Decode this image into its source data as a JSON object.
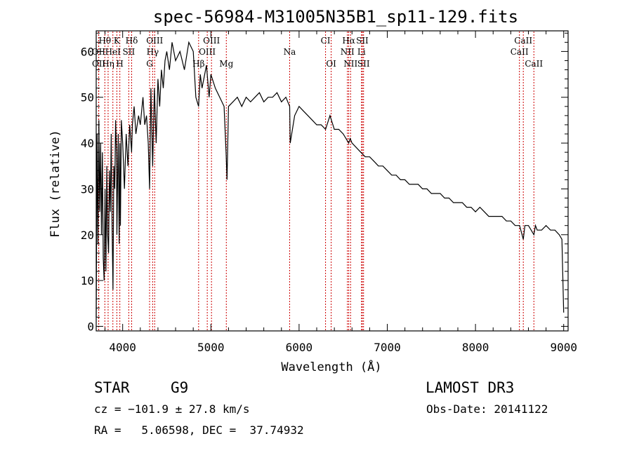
{
  "chart_data": {
    "type": "line",
    "title": "spec-56984-M31005N35B1_sp11-129.fits",
    "xlabel": "Wavelength (Å)",
    "ylabel": "Flux (relative)",
    "xlim": [
      3700,
      9050
    ],
    "ylim": [
      -1,
      64.5
    ],
    "xticks": [
      4000,
      5000,
      6000,
      7000,
      8000,
      9000
    ],
    "yticks": [
      0,
      10,
      20,
      30,
      40,
      50,
      60
    ],
    "series": [
      {
        "name": "spectrum",
        "x": [
          3700,
          3710,
          3720,
          3730,
          3740,
          3750,
          3760,
          3770,
          3780,
          3790,
          3800,
          3810,
          3820,
          3830,
          3840,
          3850,
          3860,
          3870,
          3880,
          3890,
          3900,
          3910,
          3920,
          3930,
          3935,
          3940,
          3950,
          3960,
          3968,
          3975,
          3985,
          4000,
          4020,
          4040,
          4060,
          4080,
          4101,
          4110,
          4130,
          4150,
          4180,
          4200,
          4230,
          4250,
          4270,
          4290,
          4305,
          4320,
          4340,
          4360,
          4380,
          4400,
          4420,
          4440,
          4460,
          4480,
          4500,
          4530,
          4560,
          4600,
          4650,
          4700,
          4750,
          4800,
          4830,
          4861,
          4880,
          4900,
          4950,
          4980,
          5000,
          5050,
          5100,
          5150,
          5172,
          5183,
          5200,
          5250,
          5300,
          5350,
          5400,
          5450,
          5500,
          5550,
          5600,
          5650,
          5700,
          5750,
          5800,
          5850,
          5893,
          5900,
          5950,
          6000,
          6050,
          6100,
          6150,
          6200,
          6250,
          6300,
          6350,
          6400,
          6450,
          6500,
          6563,
          6580,
          6600,
          6650,
          6700,
          6750,
          6800,
          6850,
          6900,
          6950,
          7000,
          7050,
          7100,
          7150,
          7200,
          7250,
          7300,
          7350,
          7400,
          7450,
          7500,
          7550,
          7600,
          7650,
          7700,
          7750,
          7800,
          7850,
          7900,
          7950,
          8000,
          8050,
          8100,
          8150,
          8200,
          8250,
          8300,
          8350,
          8400,
          8450,
          8500,
          8542,
          8560,
          8600,
          8662,
          8680,
          8700,
          8750,
          8800,
          8850,
          8900,
          8950,
          8980,
          9000
        ],
        "y": [
          2,
          42,
          18,
          45,
          25,
          40,
          20,
          38,
          15,
          10,
          30,
          12,
          35,
          20,
          16,
          34,
          25,
          42,
          22,
          8,
          35,
          30,
          45,
          38,
          20,
          28,
          42,
          18,
          40,
          22,
          45,
          40,
          30,
          42,
          35,
          44,
          38,
          44,
          48,
          42,
          46,
          44,
          50,
          44,
          46,
          40,
          30,
          52,
          35,
          52,
          40,
          54,
          48,
          56,
          52,
          58,
          60,
          56,
          62,
          58,
          60,
          56,
          62,
          60,
          50,
          48,
          55,
          52,
          57,
          50,
          55,
          52,
          50,
          48,
          38,
          32,
          48,
          49,
          50,
          48,
          50,
          49,
          50,
          51,
          49,
          50,
          50,
          51,
          49,
          50,
          48,
          40,
          46,
          48,
          47,
          46,
          45,
          44,
          44,
          43,
          46,
          43,
          43,
          42,
          40,
          41,
          40,
          39,
          38,
          37,
          37,
          36,
          35,
          35,
          34,
          33,
          33,
          32,
          32,
          31,
          31,
          31,
          30,
          30,
          29,
          29,
          29,
          28,
          28,
          27,
          27,
          27,
          26,
          26,
          25,
          26,
          25,
          24,
          24,
          24,
          24,
          23,
          23,
          22,
          22,
          19,
          22,
          22,
          20,
          22,
          21,
          21,
          22,
          21,
          21,
          20,
          19,
          3
        ]
      }
    ],
    "line_markers": [
      {
        "label": "Hθ",
        "x": 3798,
        "row": 1
      },
      {
        "label": "K",
        "x": 3934,
        "row": 1
      },
      {
        "label": "Hδ",
        "x": 4102,
        "row": 1
      },
      {
        "label": "OIII",
        "x": 4363,
        "row": 1
      },
      {
        "label": "OIII",
        "x": 5007,
        "row": 1
      },
      {
        "label": "CI",
        "x": 6300,
        "row": 1
      },
      {
        "label": "Hα",
        "x": 6563,
        "row": 1
      },
      {
        "label": "SII",
        "x": 6717,
        "row": 1
      },
      {
        "label": "CaII",
        "x": 8542,
        "row": 1
      },
      {
        "label": "OII",
        "x": 3727,
        "row": 2
      },
      {
        "label": "HeI",
        "x": 3889,
        "row": 2
      },
      {
        "label": "SII",
        "x": 4069,
        "row": 2
      },
      {
        "label": "Hγ",
        "x": 4340,
        "row": 2
      },
      {
        "label": "OIII",
        "x": 4959,
        "row": 2
      },
      {
        "label": "Na",
        "x": 5893,
        "row": 2
      },
      {
        "label": "NII",
        "x": 6548,
        "row": 2
      },
      {
        "label": "Li",
        "x": 6708,
        "row": 2
      },
      {
        "label": "CaII",
        "x": 8498,
        "row": 2
      },
      {
        "label": "OII",
        "x": 3729,
        "row": 3
      },
      {
        "label": "Hη",
        "x": 3835,
        "row": 3
      },
      {
        "label": "H",
        "x": 3968,
        "row": 3
      },
      {
        "label": "G",
        "x": 4305,
        "row": 3
      },
      {
        "label": "Hβ",
        "x": 4861,
        "row": 3
      },
      {
        "label": "Mg",
        "x": 5175,
        "row": 3
      },
      {
        "label": "OI",
        "x": 6364,
        "row": 3
      },
      {
        "label": "NII",
        "x": 6584,
        "row": 3
      },
      {
        "label": "SII",
        "x": 6731,
        "row": 3
      },
      {
        "label": "CaII",
        "x": 8662,
        "row": 3
      }
    ]
  },
  "footer": {
    "object_class": "STAR",
    "subclass": "G9",
    "survey": "LAMOST DR3",
    "cz": "cz = −101.9 ± 27.8 km/s",
    "obs_date": "Obs-Date: 20141122",
    "coords": "RA =   5.06598, DEC =  37.74932"
  },
  "colors": {
    "axis": "#000000",
    "marker": "#cc0000",
    "spectrum": "#000000"
  }
}
